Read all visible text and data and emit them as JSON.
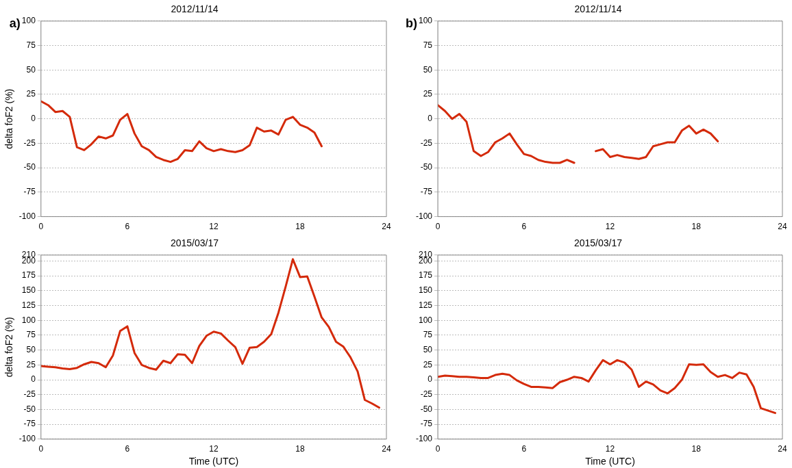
{
  "chart_data": [
    {
      "type": "line",
      "title": "2012/11/14",
      "ylabel": "delta foF2 (%)",
      "annotations": [
        "a)"
      ],
      "xlim": [
        0,
        24
      ],
      "xticks": [
        0,
        6,
        12,
        18,
        24
      ],
      "ylim": [
        -100,
        100
      ],
      "yticks": [
        -100,
        -75,
        -50,
        -25,
        0,
        25,
        50,
        75,
        100
      ],
      "grid": "y",
      "legend": false,
      "marker": "none",
      "line_style": "solid",
      "series": [
        {
          "color": "#d42a0a",
          "x": [
            0,
            0.5,
            1,
            1.5,
            2,
            2.5,
            3,
            3.5,
            4,
            4.5,
            5,
            5.5,
            6,
            6.5,
            7,
            7.5,
            8,
            8.5,
            9,
            9.5,
            10,
            10.5,
            11,
            11.5,
            12,
            12.5,
            13,
            13.5,
            14,
            14.5,
            15,
            15.5,
            16,
            16.5,
            17,
            17.5,
            18,
            18.5,
            19,
            19.5
          ],
          "values": [
            18,
            14,
            7,
            8,
            2,
            -29,
            -32,
            -26,
            -18,
            -20,
            -17,
            -1,
            5,
            -15,
            -28,
            -32,
            -39,
            -42,
            -44,
            -41,
            -32,
            -33,
            -23,
            -30,
            -33,
            -31,
            -33,
            -34,
            -32,
            -27,
            -9,
            -13,
            -12,
            -16,
            -1,
            2,
            -6,
            -9,
            -14,
            -28
          ]
        }
      ]
    },
    {
      "type": "line",
      "title": "2012/11/14",
      "annotations": [
        "b)"
      ],
      "xlim": [
        0,
        24
      ],
      "xticks": [
        0,
        6,
        12,
        18,
        24
      ],
      "ylim": [
        -100,
        100
      ],
      "yticks": [
        -100,
        -75,
        -50,
        -25,
        0,
        25,
        50,
        75,
        100
      ],
      "grid": "y",
      "legend": false,
      "marker": "none",
      "line_style": "solid",
      "series": [
        {
          "color": "#d42a0a",
          "x": [
            0,
            0.5,
            1,
            1.5,
            2,
            2.5,
            3,
            3.5,
            4,
            4.5,
            5,
            5.5,
            6,
            6.5,
            7,
            7.5,
            8,
            8.5,
            9,
            9.5,
            10,
            10.5,
            11,
            11.5,
            12,
            12.5,
            13,
            13.5,
            14,
            14.5,
            15,
            15.5,
            16,
            16.5,
            17,
            17.5,
            18,
            18.5,
            19,
            19.5
          ],
          "values": [
            14,
            8,
            0,
            5,
            -3,
            -33,
            -38,
            -34,
            -24,
            -20,
            -15,
            -26,
            -36,
            -38,
            -42,
            -44,
            -45,
            -45,
            -42,
            -45,
            null,
            null,
            -33,
            -31,
            -39,
            -37,
            -39,
            -40,
            -41,
            -39,
            -28,
            -26,
            -24,
            -24,
            -12,
            -7,
            -15,
            -11,
            -15,
            -23
          ]
        }
      ]
    },
    {
      "type": "line",
      "title": "2015/03/17",
      "xlabel": "Time (UTC)",
      "ylabel": "delta foF2 (%)",
      "xlim": [
        0,
        24
      ],
      "xticks": [
        0,
        6,
        12,
        18,
        24
      ],
      "ylim": [
        -100,
        210
      ],
      "yticks": [
        -100,
        -75,
        -50,
        -25,
        0,
        25,
        50,
        75,
        100,
        125,
        150,
        175,
        200,
        210
      ],
      "grid": "y",
      "legend": false,
      "marker": "none",
      "line_style": "solid",
      "series": [
        {
          "color": "#d42a0a",
          "x": [
            0,
            0.5,
            1,
            1.5,
            2,
            2.5,
            3,
            3.5,
            4,
            4.5,
            5,
            5.5,
            6,
            6.5,
            7,
            7.5,
            8,
            8.5,
            9,
            9.5,
            10,
            10.5,
            11,
            11.5,
            12,
            12.5,
            13,
            13.5,
            14,
            14.5,
            15,
            15.5,
            16,
            16.5,
            17,
            17.5,
            18,
            18.5,
            19,
            19.5,
            20,
            20.5,
            21,
            21.5,
            22,
            22.5,
            23,
            23.5
          ],
          "values": [
            23,
            22,
            21,
            19,
            18,
            20,
            26,
            30,
            28,
            21,
            41,
            82,
            90,
            45,
            25,
            20,
            17,
            32,
            28,
            43,
            42,
            28,
            57,
            74,
            81,
            78,
            66,
            55,
            27,
            54,
            55,
            64,
            77,
            113,
            157,
            203,
            173,
            174,
            140,
            105,
            89,
            64,
            56,
            38,
            14,
            -34,
            -40,
            -47
          ]
        }
      ]
    },
    {
      "type": "line",
      "title": "2015/03/17",
      "xlabel": "Time (UTC)",
      "xlim": [
        0,
        24
      ],
      "xticks": [
        0,
        6,
        12,
        18,
        24
      ],
      "ylim": [
        -100,
        210
      ],
      "yticks": [
        -100,
        -75,
        -50,
        -25,
        0,
        25,
        50,
        75,
        100,
        125,
        150,
        175,
        200,
        210
      ],
      "grid": "y",
      "legend": false,
      "marker": "none",
      "line_style": "solid",
      "series": [
        {
          "color": "#d42a0a",
          "x": [
            0,
            0.5,
            1,
            1.5,
            2,
            2.5,
            3,
            3.5,
            4,
            4.5,
            5,
            5.5,
            6,
            6.5,
            7,
            7.5,
            8,
            8.5,
            9,
            9.5,
            10,
            10.5,
            11,
            11.5,
            12,
            12.5,
            13,
            13.5,
            14,
            14.5,
            15,
            15.5,
            16,
            16.5,
            17,
            17.5,
            18,
            18.5,
            19,
            19.5,
            20,
            20.5,
            21,
            21.5,
            22,
            22.5,
            23,
            23.5
          ],
          "values": [
            5,
            7,
            6,
            5,
            5,
            4,
            3,
            3,
            8,
            10,
            8,
            -1,
            -7,
            -12,
            -12,
            -13,
            -14,
            -4,
            0,
            5,
            3,
            -3,
            16,
            33,
            26,
            33,
            29,
            17,
            -12,
            -3,
            -8,
            -18,
            -23,
            -14,
            0,
            26,
            25,
            26,
            13,
            5,
            8,
            3,
            12,
            9,
            -12,
            -48,
            -52,
            -56
          ]
        }
      ]
    }
  ]
}
